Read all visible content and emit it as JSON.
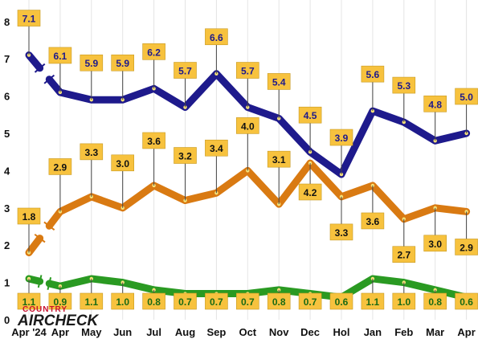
{
  "chart_data": {
    "type": "line",
    "title": "",
    "xlabel": "",
    "ylabel": "",
    "ylim": [
      0,
      8
    ],
    "yticks": [
      0,
      1,
      2,
      3,
      4,
      5,
      6,
      7,
      8
    ],
    "grid": "vertical",
    "categories": [
      "Apr '24",
      "Apr",
      "May",
      "Jun",
      "Jul",
      "Aug",
      "Sep",
      "Oct",
      "Nov",
      "Dec",
      "Hol",
      "Jan",
      "Feb",
      "Mar",
      "Apr"
    ],
    "series": [
      {
        "color": "#1e1a8c",
        "label_color": "#1e1a8c",
        "values": [
          7.1,
          6.1,
          5.9,
          5.9,
          6.2,
          5.7,
          6.6,
          5.7,
          5.4,
          4.5,
          3.9,
          5.6,
          5.3,
          4.8,
          5.0
        ],
        "labels": [
          "7.1",
          "6.1",
          "5.9",
          "5.9",
          "6.2",
          "5.7",
          "6.6",
          "5.7",
          "5.4",
          "4.5",
          "3.9",
          "5.6",
          "5.3",
          "4.8",
          "5.0"
        ]
      },
      {
        "color": "#d97a12",
        "label_color": "#111111",
        "values": [
          1.8,
          2.9,
          3.3,
          3.0,
          3.6,
          3.2,
          3.4,
          4.0,
          3.1,
          4.2,
          3.3,
          3.6,
          2.7,
          3.0,
          2.9
        ],
        "labels": [
          "1.8",
          "2.9",
          "3.3",
          "3.0",
          "3.6",
          "3.2",
          "3.4",
          "4.0",
          "3.1",
          "4.2",
          "3.3",
          "3.6",
          "2.7",
          "3.0",
          "2.9"
        ]
      },
      {
        "color": "#2a9a22",
        "label_color": "#1a6a14",
        "values": [
          1.1,
          0.9,
          1.1,
          1.0,
          0.8,
          0.7,
          0.7,
          0.7,
          0.8,
          0.7,
          0.6,
          1.1,
          1.0,
          0.8,
          0.6
        ],
        "labels": [
          "1.1",
          "0.9",
          "1.1",
          "1.0",
          "0.8",
          "0.7",
          "0.7",
          "0.7",
          "0.8",
          "0.7",
          "0.6",
          "1.1",
          "1.0",
          "0.8",
          "0.6"
        ]
      }
    ],
    "label_box_color": "#f7c23e"
  },
  "logo": {
    "top": "COUNTRY",
    "bottom": "AIRCHECK",
    "top_color": "#c8102e",
    "bottom_color": "#1a1a1a"
  }
}
